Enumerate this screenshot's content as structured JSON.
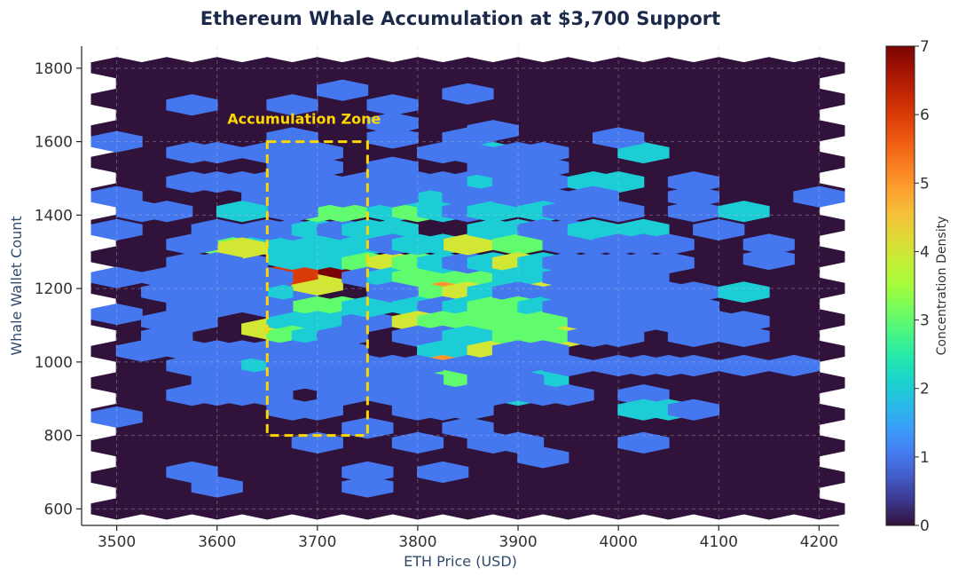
{
  "chart_data": {
    "type": "heatmap",
    "subtype": "hexbin",
    "title": "Ethereum Whale Accumulation at $3,700 Support",
    "xlabel": "ETH Price (USD)",
    "ylabel": "Whale Wallet Count",
    "xlim": [
      3465,
      4220
    ],
    "ylim": [
      555,
      1860
    ],
    "xticks": [
      "3500",
      "3600",
      "3700",
      "3800",
      "3900",
      "4000",
      "4100",
      "4200"
    ],
    "yticks": [
      "600",
      "800",
      "1000",
      "1200",
      "1400",
      "1600",
      "1800"
    ],
    "colorbar": {
      "label": "Concentration Density",
      "range": [
        0,
        7
      ],
      "ticks": [
        "0",
        "1",
        "2",
        "3",
        "4",
        "5",
        "6",
        "7"
      ],
      "colormap": "turbo"
    },
    "grid": true,
    "annotation": {
      "text": "Accumulation Zone",
      "color": "#FFD700",
      "box": {
        "x": [
          3650,
          3750
        ],
        "y": [
          800,
          1600
        ]
      }
    },
    "hex_grid": {
      "x_start": 3500,
      "x_step": 25,
      "y_start": 600,
      "y_step": 42.9
    },
    "cells": [
      [
        3675,
        1190,
        1
      ],
      [
        3700,
        1230,
        1
      ],
      [
        3725,
        1240,
        7
      ],
      [
        3700,
        1210,
        4
      ],
      [
        3675,
        1240,
        6
      ],
      [
        3650,
        1090,
        4
      ],
      [
        3725,
        1280,
        2
      ],
      [
        3675,
        1280,
        2
      ],
      [
        3700,
        1280,
        2
      ],
      [
        3700,
        1320,
        2
      ],
      [
        3725,
        1320,
        2
      ],
      [
        3675,
        1320,
        2
      ],
      [
        3700,
        1150,
        3
      ],
      [
        3725,
        1150,
        3
      ],
      [
        3700,
        1110,
        2
      ],
      [
        3725,
        1110,
        2
      ],
      [
        3675,
        1110,
        2
      ],
      [
        3675,
        1070,
        3
      ],
      [
        3700,
        1070,
        2
      ],
      [
        3725,
        1070,
        1
      ],
      [
        3750,
        1110,
        1
      ],
      [
        3750,
        1150,
        2
      ],
      [
        3650,
        1190,
        2
      ],
      [
        3650,
        1150,
        1
      ],
      [
        3650,
        1230,
        1
      ],
      [
        3625,
        1230,
        1
      ],
      [
        3625,
        1270,
        1
      ],
      [
        3625,
        1320,
        1
      ],
      [
        3650,
        1320,
        2
      ],
      [
        3650,
        1360,
        1
      ],
      [
        3675,
        1360,
        1
      ],
      [
        3700,
        1360,
        2
      ],
      [
        3725,
        1360,
        1
      ],
      [
        3700,
        1410,
        3
      ],
      [
        3725,
        1410,
        3
      ],
      [
        3675,
        1410,
        1
      ],
      [
        3750,
        1360,
        2
      ],
      [
        3775,
        1360,
        2
      ],
      [
        3750,
        1320,
        2
      ],
      [
        3750,
        1270,
        3
      ],
      [
        3775,
        1270,
        4
      ],
      [
        3775,
        1320,
        1
      ],
      [
        3750,
        1230,
        1
      ],
      [
        3775,
        1230,
        2
      ],
      [
        3800,
        1230,
        3
      ],
      [
        3825,
        1230,
        3
      ],
      [
        3850,
        1230,
        3
      ],
      [
        3825,
        1190,
        5
      ],
      [
        3800,
        1190,
        3
      ],
      [
        3850,
        1190,
        4
      ],
      [
        3875,
        1190,
        2
      ],
      [
        3775,
        1190,
        1
      ],
      [
        3800,
        1150,
        2
      ],
      [
        3825,
        1150,
        1
      ],
      [
        3850,
        1150,
        2
      ],
      [
        3875,
        1150,
        3
      ],
      [
        3800,
        1110,
        4
      ],
      [
        3825,
        1110,
        3
      ],
      [
        3850,
        1110,
        3
      ],
      [
        3875,
        1110,
        3
      ],
      [
        3800,
        1070,
        1
      ],
      [
        3825,
        1070,
        1
      ],
      [
        3850,
        1070,
        2
      ],
      [
        3825,
        1030,
        2
      ],
      [
        3850,
        1030,
        2
      ],
      [
        3875,
        1030,
        4
      ],
      [
        3825,
        990,
        5
      ],
      [
        3850,
        990,
        1
      ],
      [
        3825,
        950,
        3
      ],
      [
        3800,
        1270,
        3
      ],
      [
        3825,
        1270,
        2
      ],
      [
        3850,
        1270,
        1
      ],
      [
        3875,
        1270,
        2
      ],
      [
        3825,
        1320,
        2
      ],
      [
        3850,
        1320,
        4
      ],
      [
        3800,
        1320,
        2
      ],
      [
        3775,
        1410,
        2
      ],
      [
        3800,
        1410,
        3
      ],
      [
        3825,
        1410,
        2
      ],
      [
        3800,
        1450,
        2
      ],
      [
        3825,
        1450,
        2
      ],
      [
        3800,
        1490,
        1
      ],
      [
        3825,
        1490,
        1
      ],
      [
        3850,
        1490,
        1
      ],
      [
        3875,
        1490,
        2
      ],
      [
        3850,
        1450,
        1
      ],
      [
        3875,
        1450,
        1
      ],
      [
        3850,
        1410,
        1
      ],
      [
        3875,
        1410,
        2
      ],
      [
        3875,
        1360,
        2
      ],
      [
        3900,
        1360,
        2
      ],
      [
        3900,
        1320,
        3
      ],
      [
        3900,
        1270,
        4
      ],
      [
        3925,
        1270,
        2
      ],
      [
        3900,
        1230,
        2
      ],
      [
        3925,
        1230,
        2
      ],
      [
        3925,
        1190,
        4
      ],
      [
        3900,
        1190,
        1
      ],
      [
        3900,
        1150,
        3
      ],
      [
        3925,
        1150,
        2
      ],
      [
        3925,
        1110,
        3
      ],
      [
        3950,
        1110,
        3
      ],
      [
        3950,
        1070,
        4
      ],
      [
        3900,
        1070,
        3
      ],
      [
        3925,
        1070,
        3
      ],
      [
        3900,
        1030,
        1
      ],
      [
        3925,
        1030,
        1
      ],
      [
        3900,
        990,
        1
      ],
      [
        3925,
        950,
        2
      ],
      [
        3900,
        910,
        2
      ],
      [
        3925,
        910,
        1
      ],
      [
        3950,
        910,
        1
      ],
      [
        3800,
        990,
        1
      ],
      [
        3800,
        950,
        1
      ],
      [
        3800,
        910,
        1
      ],
      [
        3825,
        910,
        1
      ],
      [
        3850,
        910,
        1
      ],
      [
        3875,
        910,
        1
      ],
      [
        3800,
        870,
        1
      ],
      [
        3825,
        870,
        1
      ],
      [
        3850,
        870,
        1
      ],
      [
        3775,
        910,
        1
      ],
      [
        3775,
        950,
        1
      ],
      [
        3750,
        950,
        1
      ],
      [
        3750,
        990,
        1
      ],
      [
        3775,
        990,
        1
      ],
      [
        3875,
        950,
        1
      ],
      [
        3900,
        950,
        1
      ],
      [
        3875,
        990,
        1
      ],
      [
        3600,
        1320,
        3
      ],
      [
        3600,
        1360,
        1
      ],
      [
        3625,
        1310,
        4
      ],
      [
        3575,
        1320,
        1
      ],
      [
        3575,
        1270,
        1
      ],
      [
        3600,
        1270,
        1
      ],
      [
        3575,
        1230,
        1
      ],
      [
        3550,
        1230,
        1
      ],
      [
        3550,
        1190,
        1
      ],
      [
        3575,
        1150,
        1
      ],
      [
        3600,
        1190,
        1
      ],
      [
        3625,
        1190,
        1
      ],
      [
        3600,
        1150,
        1
      ],
      [
        3575,
        1110,
        1
      ],
      [
        3550,
        1110,
        1
      ],
      [
        3550,
        1070,
        1
      ],
      [
        3525,
        1030,
        1
      ],
      [
        3575,
        1030,
        1
      ],
      [
        3575,
        990,
        1
      ],
      [
        3600,
        990,
        1
      ],
      [
        3625,
        990,
        1
      ],
      [
        3625,
        1030,
        1
      ],
      [
        3650,
        990,
        2
      ],
      [
        3650,
        950,
        1
      ],
      [
        3625,
        950,
        1
      ],
      [
        3600,
        950,
        1
      ],
      [
        3600,
        910,
        1
      ],
      [
        3625,
        910,
        1
      ],
      [
        3650,
        910,
        1
      ],
      [
        3575,
        910,
        1
      ],
      [
        3675,
        950,
        1
      ],
      [
        3700,
        950,
        1
      ],
      [
        3725,
        950,
        1
      ],
      [
        3725,
        990,
        1
      ],
      [
        3700,
        990,
        1
      ],
      [
        3675,
        990,
        1
      ],
      [
        3700,
        1030,
        1
      ],
      [
        3725,
        1030,
        1
      ],
      [
        3675,
        1030,
        1
      ],
      [
        3650,
        1030,
        1
      ],
      [
        3725,
        910,
        1
      ],
      [
        3700,
        870,
        1
      ],
      [
        3675,
        870,
        1
      ],
      [
        3650,
        1450,
        1
      ],
      [
        3675,
        1450,
        1
      ],
      [
        3700,
        1450,
        1
      ],
      [
        3725,
        1450,
        1
      ],
      [
        3650,
        1490,
        1
      ],
      [
        3675,
        1490,
        1
      ],
      [
        3700,
        1490,
        1
      ],
      [
        3675,
        1530,
        1
      ],
      [
        3700,
        1530,
        1
      ],
      [
        3675,
        1570,
        1
      ],
      [
        3650,
        1570,
        1
      ],
      [
        3675,
        1610,
        1
      ],
      [
        3700,
        1570,
        1
      ],
      [
        3750,
        1450,
        1
      ],
      [
        3775,
        1450,
        1
      ],
      [
        3775,
        1490,
        1
      ],
      [
        3750,
        1490,
        1
      ],
      [
        3775,
        1530,
        1
      ],
      [
        3775,
        1610,
        1
      ],
      [
        3775,
        1650,
        1
      ],
      [
        3775,
        1700,
        1
      ],
      [
        3725,
        1740,
        1
      ],
      [
        3675,
        1700,
        1
      ],
      [
        3575,
        1700,
        1
      ],
      [
        3500,
        1600,
        1
      ],
      [
        3500,
        1450,
        1
      ],
      [
        3500,
        1360,
        1
      ],
      [
        3500,
        1230,
        1
      ],
      [
        3500,
        1130,
        1
      ],
      [
        3500,
        850,
        1
      ],
      [
        3525,
        1410,
        1
      ],
      [
        3550,
        1410,
        1
      ],
      [
        3575,
        1490,
        1
      ],
      [
        3600,
        1490,
        1
      ],
      [
        3575,
        1570,
        1
      ],
      [
        3600,
        1570,
        1
      ],
      [
        3625,
        1490,
        1
      ],
      [
        3625,
        1410,
        2
      ],
      [
        3600,
        1030,
        1
      ],
      [
        3850,
        1610,
        1
      ],
      [
        3875,
        1570,
        2
      ],
      [
        3900,
        1570,
        1
      ],
      [
        3925,
        1570,
        1
      ],
      [
        3900,
        1530,
        1
      ],
      [
        3925,
        1530,
        1
      ],
      [
        3875,
        1530,
        1
      ],
      [
        3900,
        1490,
        1
      ],
      [
        3925,
        1490,
        1
      ],
      [
        3900,
        1450,
        1
      ],
      [
        3925,
        1450,
        1
      ],
      [
        3925,
        1410,
        2
      ],
      [
        3950,
        1410,
        1
      ],
      [
        3875,
        1630,
        1
      ],
      [
        3825,
        1570,
        1
      ],
      [
        3850,
        1570,
        1
      ],
      [
        3925,
        1360,
        1
      ],
      [
        3950,
        1360,
        1
      ],
      [
        3950,
        1320,
        1
      ],
      [
        3975,
        1320,
        1
      ],
      [
        3975,
        1360,
        2
      ],
      [
        3950,
        1270,
        1
      ],
      [
        3975,
        1270,
        1
      ],
      [
        3950,
        1230,
        1
      ],
      [
        3975,
        1230,
        1
      ],
      [
        3950,
        1190,
        1
      ],
      [
        3975,
        1190,
        1
      ],
      [
        3975,
        1150,
        1
      ],
      [
        3950,
        1150,
        1
      ],
      [
        3975,
        1110,
        1
      ],
      [
        4000,
        1110,
        1
      ],
      [
        3975,
        1070,
        1
      ],
      [
        4000,
        1070,
        1
      ],
      [
        3950,
        990,
        1
      ],
      [
        3975,
        1490,
        2
      ],
      [
        4000,
        1490,
        2
      ],
      [
        3975,
        1450,
        1
      ],
      [
        4025,
        1570,
        2
      ],
      [
        4000,
        1610,
        1
      ],
      [
        4075,
        1490,
        1
      ],
      [
        4075,
        1450,
        1
      ],
      [
        4000,
        1410,
        1
      ],
      [
        4075,
        1410,
        1
      ],
      [
        4025,
        1360,
        2
      ],
      [
        4025,
        1320,
        1
      ],
      [
        4000,
        1320,
        1
      ],
      [
        4050,
        1320,
        1
      ],
      [
        4000,
        1270,
        1
      ],
      [
        4025,
        1270,
        1
      ],
      [
        4050,
        1270,
        1
      ],
      [
        4025,
        1230,
        1
      ],
      [
        4000,
        1230,
        1
      ],
      [
        4025,
        1190,
        1
      ],
      [
        4050,
        1190,
        1
      ],
      [
        4075,
        1190,
        1
      ],
      [
        4025,
        1150,
        1
      ],
      [
        4050,
        1150,
        1
      ],
      [
        4075,
        1150,
        1
      ],
      [
        4025,
        1110,
        1
      ],
      [
        4050,
        1110,
        1
      ],
      [
        4000,
        1150,
        1
      ],
      [
        4100,
        1360,
        1
      ],
      [
        4125,
        1410,
        2
      ],
      [
        4125,
        1190,
        2
      ],
      [
        4150,
        1320,
        1
      ],
      [
        4150,
        1280,
        1
      ],
      [
        4125,
        1110,
        1
      ],
      [
        4125,
        1070,
        1
      ],
      [
        4075,
        1070,
        1
      ],
      [
        4100,
        1110,
        1
      ],
      [
        4200,
        1450,
        1
      ],
      [
        4000,
        990,
        1
      ],
      [
        4025,
        990,
        1
      ],
      [
        4050,
        990,
        1
      ],
      [
        4075,
        990,
        1
      ],
      [
        4025,
        910,
        1
      ],
      [
        4025,
        870,
        2
      ],
      [
        4050,
        870,
        2
      ],
      [
        4075,
        870,
        1
      ],
      [
        4025,
        780,
        1
      ],
      [
        4125,
        990,
        1
      ],
      [
        4175,
        990,
        1
      ],
      [
        3800,
        780,
        1
      ],
      [
        3875,
        780,
        1
      ],
      [
        3900,
        780,
        1
      ],
      [
        3850,
        820,
        1
      ],
      [
        3925,
        740,
        1
      ],
      [
        3700,
        780,
        1
      ],
      [
        3750,
        820,
        1
      ],
      [
        3575,
        700,
        1
      ],
      [
        3600,
        660,
        1
      ],
      [
        3750,
        660,
        1
      ],
      [
        3750,
        700,
        1
      ],
      [
        3825,
        700,
        1
      ],
      [
        3850,
        1730,
        1
      ]
    ]
  }
}
